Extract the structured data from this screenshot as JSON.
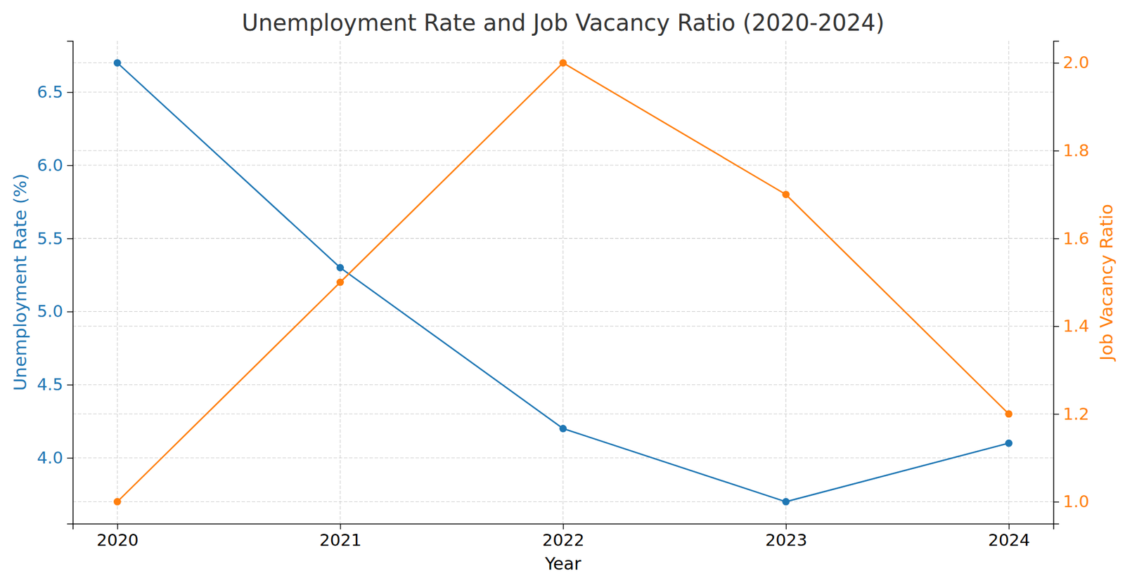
{
  "chart_data": {
    "type": "line",
    "title": "Unemployment Rate and Job Vacancy Ratio (2020-2024)",
    "x_label": "Year",
    "y_label": "Unemployment Rate (%)",
    "y2_label": "Job Vacancy Ratio",
    "x": [
      2020,
      2021,
      2022,
      2023,
      2024
    ],
    "series": [
      {
        "color": "#1f77b4",
        "values": [
          6.7,
          5.3,
          4.2,
          3.7,
          4.1
        ],
        "axis": "y",
        "marker": "circle",
        "line_style": "solid"
      },
      {
        "color": "#ff7f0e",
        "values": [
          1.0,
          1.5,
          2.0,
          1.7,
          1.2
        ],
        "axis": "y2",
        "marker": "circle",
        "line_style": "solid"
      }
    ],
    "xlim": [
      2019.8,
      2024.2
    ],
    "xticks": [
      2020,
      2021,
      2022,
      2023,
      2024
    ],
    "ylim": [
      3.55,
      6.85
    ],
    "yticks": [
      {
        "value": 4,
        "label": "4.0"
      },
      4.5,
      {
        "value": 5,
        "label": "5.0"
      },
      5.5,
      {
        "value": 6,
        "label": "6.0"
      },
      6.5
    ],
    "y2lim": [
      0.95,
      2.05
    ],
    "y2ticks": [
      {
        "value": 1,
        "label": "1.0"
      },
      1.2,
      1.4,
      1.6,
      1.8,
      {
        "value": 2,
        "label": "2.0"
      }
    ],
    "grid": true
  }
}
